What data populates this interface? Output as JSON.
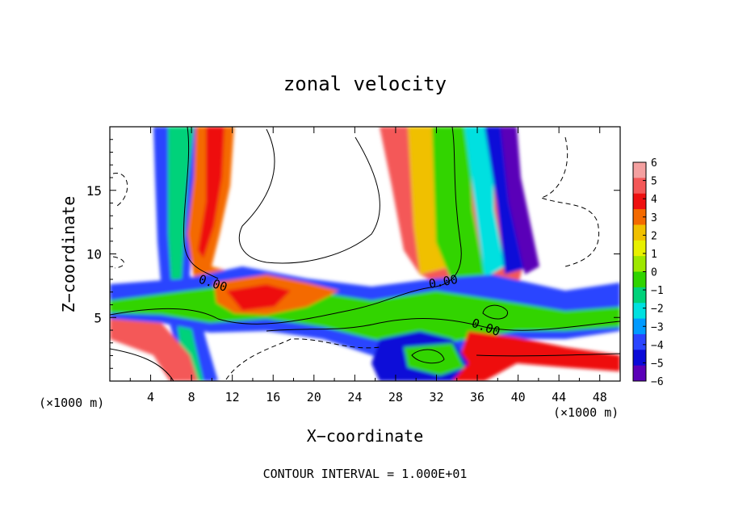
{
  "chart_data": {
    "type": "heatmap",
    "title": "zonal velocity",
    "xlabel": "X−coordinate",
    "ylabel": "Z−coordinate",
    "x_unit_left": "(×1000 m)",
    "x_unit_right": "(×1000 m)",
    "footer": "CONTOUR INTERVAL = 1.000E+01",
    "xlim": [
      0,
      50
    ],
    "ylim": [
      0,
      20
    ],
    "x_ticks": [
      "4",
      "8",
      "12",
      "16",
      "20",
      "24",
      "28",
      "32",
      "36",
      "40",
      "44",
      "48"
    ],
    "x_tick_values": [
      4,
      8,
      12,
      16,
      20,
      24,
      28,
      32,
      36,
      40,
      44,
      48
    ],
    "y_ticks": [
      "5",
      "10",
      "15"
    ],
    "y_tick_values": [
      5,
      10,
      15
    ],
    "contour_labels": [
      "0.00",
      "0.00",
      "0.00"
    ],
    "colorbar": {
      "min": -6,
      "max": 6,
      "tick_labels": [
        "6",
        "5",
        "4",
        "3",
        "2",
        "1",
        "0",
        "−1",
        "−2",
        "−3",
        "−4",
        "−5",
        "−6"
      ],
      "tick_values": [
        6,
        5,
        4,
        3,
        2,
        1,
        0,
        -1,
        -2,
        -3,
        -4,
        -5,
        -6
      ],
      "colors": [
        "#f4a0a0",
        "#f45858",
        "#ee1010",
        "#f46a00",
        "#f0c000",
        "#e8f000",
        "#9ee800",
        "#30d400",
        "#00d27a",
        "#00e0e0",
        "#009aff",
        "#2a45ff",
        "#0a0ad8",
        "#5a00b8"
      ]
    }
  }
}
